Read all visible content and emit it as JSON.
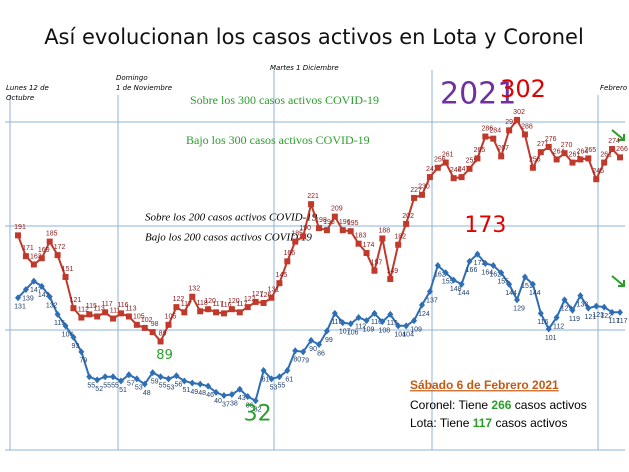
{
  "chart_data": {
    "type": "line",
    "title": "Así evolucionan los casos activos en Lota y Coronel",
    "annotations": [
      "Lunes 12 de",
      "Octubre",
      "Domingo",
      "1 de Noviembre",
      "Martes 1 Diciembre",
      "2021",
      "Febrero"
    ],
    "reference_notes": [
      "Sobre los 300 casos activos COVID-19",
      "Bajo los 300 casos activos COVID-19",
      "Sobre los 200 casos activos COVID-19",
      "Bajo los 200 casos activos COVID 19"
    ],
    "reference_lines": [
      300,
      200,
      100
    ],
    "reference_color": "#8fb3d9",
    "ylim": [
      -10,
      360
    ],
    "highlight": {
      "max_color": "#e00000",
      "min_color": "#2a9d2a"
    },
    "series": [
      {
        "color": "#c0392b",
        "label_color": "#8b1a1a",
        "marker": "square",
        "values": [
          191,
          171,
          163,
          169,
          185,
          172,
          151,
          121,
          112,
          115,
          113,
          117,
          111,
          116,
          113,
          105,
          102,
          98,
          89,
          105,
          122,
          117,
          132,
          118,
          120,
          117,
          116,
          120,
          117,
          122,
          127,
          126,
          131,
          145,
          166,
          185,
          190,
          221,
          198,
          196,
          209,
          196,
          195,
          183,
          174,
          157,
          188,
          149,
          182,
          202,
          227,
          230,
          247,
          256,
          261,
          246,
          247,
          255,
          265,
          286,
          284,
          267,
          292,
          302,
          288,
          256,
          271,
          276,
          264,
          270,
          261,
          264,
          265,
          245,
          261,
          274,
          266
        ]
      },
      {
        "color": "#2e6eb5",
        "label_color": "#1f3f6e",
        "marker": "diamond",
        "values": [
          131,
          139,
          147,
          142,
          132,
          115,
          104,
          93,
          79,
          55,
          52,
          55,
          55,
          51,
          57,
          53,
          48,
          59,
          55,
          53,
          56,
          51,
          49,
          48,
          46,
          40,
          37,
          38,
          43,
          36,
          32,
          61,
          53,
          55,
          61,
          80,
          79,
          90,
          86,
          99,
          116,
          107,
          106,
          112,
          109,
          116,
          108,
          115,
          104,
          104,
          109,
          124,
          137,
          162,
          155,
          148,
          144,
          166,
          173,
          164,
          162,
          155,
          144,
          129,
          151,
          144,
          116,
          101,
          112,
          129,
          119,
          133,
          121,
          123,
          122,
          117,
          117
        ]
      }
    ],
    "info": {
      "date": "Sábado 6 de Febrero 2021",
      "lines": [
        {
          "label": "Coronel:",
          "verb": "Tiene",
          "value": 266,
          "unit": "casos activos"
        },
        {
          "label": "Lota:",
          "verb": "Tiene",
          "value": 117,
          "unit": "casos activos"
        }
      ]
    }
  }
}
